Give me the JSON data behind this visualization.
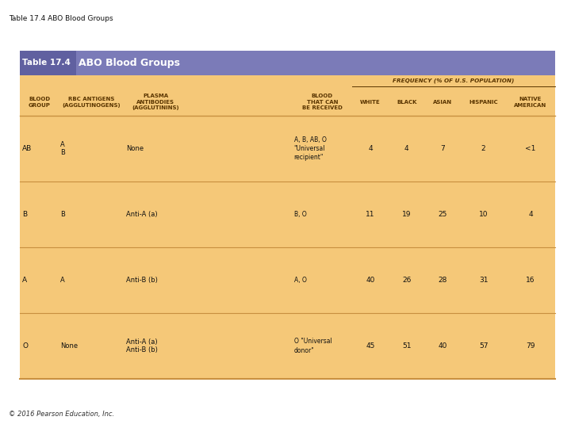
{
  "title_bar_text": "Table 17.4",
  "title_main_text": "ABO Blood Groups",
  "title_bar_color": "#7b7bb8",
  "title_label_color": "#6060a0",
  "title_text_color": "#ffffff",
  "table_bg_color": "#f5c878",
  "header_line_color": "#c89040",
  "freq_header": "FREQUENCY (% OF U.S. POPULATION)",
  "rows": [
    {
      "blood_group": "AB",
      "rbc_antigens": "A\nB",
      "antibodies": "None",
      "blood_received": "A, B, AB, O\n\"Universal\nrecipient\"",
      "white": "4",
      "black": "4",
      "asian": "7",
      "hispanic": "2",
      "native_american": "<1"
    },
    {
      "blood_group": "B",
      "rbc_antigens": "B",
      "antibodies": "Anti-A (a)",
      "blood_received": "B, O",
      "white": "11",
      "black": "19",
      "asian": "25",
      "hispanic": "10",
      "native_american": "4"
    },
    {
      "blood_group": "A",
      "rbc_antigens": "A",
      "antibodies": "Anti-B (b)",
      "blood_received": "A, O",
      "white": "40",
      "black": "26",
      "asian": "28",
      "hispanic": "31",
      "native_american": "16"
    },
    {
      "blood_group": "O",
      "rbc_antigens": "None",
      "antibodies": "Anti-A (a)\nAnti-B (b)",
      "blood_received": "O \"Universal\ndonor\"",
      "white": "45",
      "black": "51",
      "asian": "40",
      "hispanic": "57",
      "native_american": "79"
    }
  ],
  "page_title": "Table 17.4 ABO Blood Groups",
  "footer": "© 2016 Pearson Education, Inc.",
  "bg_color": "#ffffff",
  "text_color": "#333333",
  "header_text_color": "#5a3500",
  "row_divider_color": "#c89040"
}
